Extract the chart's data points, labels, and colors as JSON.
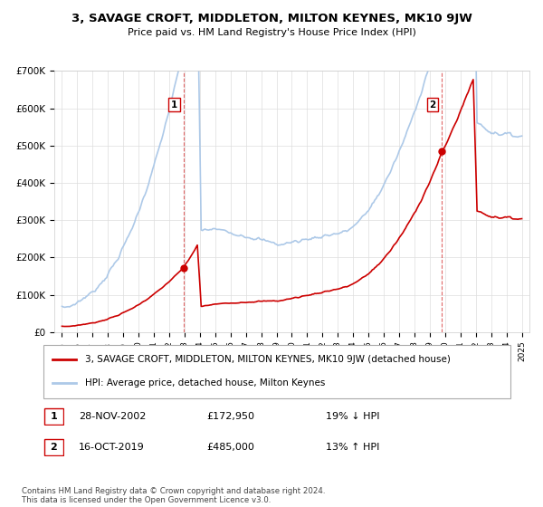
{
  "title": "3, SAVAGE CROFT, MIDDLETON, MILTON KEYNES, MK10 9JW",
  "subtitle": "Price paid vs. HM Land Registry's House Price Index (HPI)",
  "legend_line1": "3, SAVAGE CROFT, MIDDLETON, MILTON KEYNES, MK10 9JW (detached house)",
  "legend_line2": "HPI: Average price, detached house, Milton Keynes",
  "sale1_date": "28-NOV-2002",
  "sale1_price": 172950,
  "sale1_label": "19% ↓ HPI",
  "sale2_date": "16-OCT-2019",
  "sale2_price": 485000,
  "sale2_label": "13% ↑ HPI",
  "footer": "Contains HM Land Registry data © Crown copyright and database right 2024.\nThis data is licensed under the Open Government Licence v3.0.",
  "hpi_color": "#adc9e8",
  "price_color": "#cc0000",
  "background_color": "#ffffff",
  "ylim_min": 0,
  "ylim_max": 700000,
  "yticks": [
    0,
    100000,
    200000,
    300000,
    400000,
    500000,
    600000,
    700000
  ],
  "ytick_labels": [
    "£0",
    "£100K",
    "£200K",
    "£300K",
    "£400K",
    "£500K",
    "£600K",
    "£700K"
  ],
  "sale1_year": 2002.917,
  "sale2_year": 2019.792
}
